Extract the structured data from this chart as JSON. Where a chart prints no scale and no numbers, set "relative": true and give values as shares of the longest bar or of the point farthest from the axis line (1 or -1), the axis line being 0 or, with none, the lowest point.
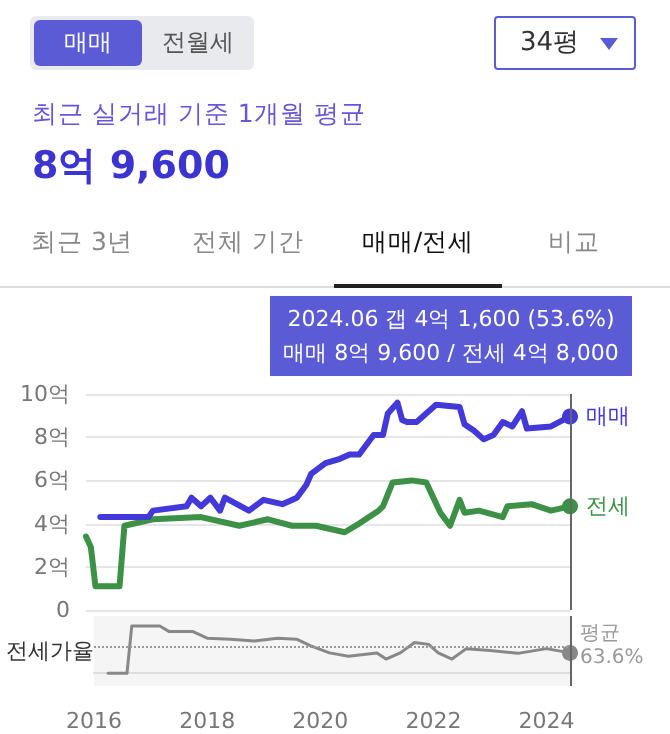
{
  "chart_data": [
    {
      "type": "line",
      "title": "8억 9,600",
      "subtitle": "최근 실거래 기준 1개월 평균",
      "annotations": [
        "매매",
        "전월세",
        "34평",
        "최근 3년",
        "전체 기간",
        "매매/전세",
        "비교",
        "2024.06  갭 4억 1,600 (53.6%)",
        "매매 8억 9,600 / 전세 4억 8,000"
      ],
      "series": [
        {
          "name": "매매",
          "color": "#4338d8",
          "x": [
            "2016-04",
            "2017-02",
            "2017-03",
            "2017-10",
            "2017-11",
            "2018-01",
            "2018-03",
            "2018-05",
            "2018-06",
            "2018-11",
            "2019-02",
            "2019-06",
            "2019-09",
            "2019-11",
            "2019-12",
            "2020-03",
            "2020-06",
            "2020-08",
            "2020-10",
            "2021-01",
            "2021-03",
            "2021-04",
            "2021-06",
            "2021-07",
            "2021-08",
            "2021-10",
            "2022-02",
            "2022-07",
            "2022-08",
            "2022-10",
            "2022-12",
            "2023-02",
            "2023-04",
            "2023-06",
            "2023-08",
            "2023-09",
            "2024-02",
            "2024-06"
          ],
          "values": [
            4.3,
            4.3,
            4.6,
            4.8,
            5.2,
            4.8,
            5.2,
            4.6,
            5.2,
            4.6,
            5.1,
            4.9,
            5.2,
            5.8,
            6.3,
            6.8,
            7.0,
            7.2,
            7.2,
            8.1,
            8.1,
            9.1,
            9.6,
            8.8,
            8.7,
            8.7,
            9.5,
            9.4,
            8.6,
            8.3,
            7.9,
            8.1,
            8.7,
            8.5,
            9.2,
            8.4,
            8.5,
            8.96
          ]
        },
        {
          "name": "전세",
          "color": "#3d9147",
          "x": [
            "2016-01",
            "2016-02",
            "2016-03",
            "2016-08",
            "2016-09",
            "2017-03",
            "2018-01",
            "2018-09",
            "2019-03",
            "2019-08",
            "2020-01",
            "2020-07",
            "2020-10",
            "2021-02",
            "2021-03",
            "2021-05",
            "2021-09",
            "2021-12",
            "2022-03",
            "2022-05",
            "2022-07",
            "2022-08",
            "2022-11",
            "2023-04",
            "2023-05",
            "2023-10",
            "2024-02",
            "2024-06"
          ],
          "values": [
            3.4,
            2.9,
            1.1,
            1.1,
            3.9,
            4.2,
            4.3,
            3.9,
            4.2,
            3.9,
            3.9,
            3.6,
            4.0,
            4.6,
            4.8,
            5.9,
            6.0,
            5.9,
            4.5,
            3.9,
            5.1,
            4.5,
            4.6,
            4.3,
            4.8,
            4.9,
            4.6,
            4.8
          ]
        }
      ],
      "xlim": [
        "2016-01",
        "2024-06"
      ],
      "ylim": [
        0,
        10
      ],
      "yticks": [
        0,
        {
          "value": 2,
          "label": "2억"
        },
        {
          "value": 4,
          "label": "4억"
        },
        {
          "value": 6,
          "label": "6억"
        },
        {
          "value": 8,
          "label": "8억"
        },
        {
          "value": 10,
          "label": "10억"
        }
      ],
      "grid": "y",
      "tick_labels": "y",
      "marker": "none",
      "ref_lines": [
        {
          "axis": "x",
          "value": "2024-06",
          "color": "#666666"
        }
      ]
    },
    {
      "type": "line",
      "ylabel": "전세가율",
      "series": [
        {
          "color": "#888888",
          "x": [
            "2016-04",
            "2016-08",
            "2016-09",
            "2017-03",
            "2017-05",
            "2017-10",
            "2018-01",
            "2018-06",
            "2018-11",
            "2019-04",
            "2019-08",
            "2019-11",
            "2020-03",
            "2020-07",
            "2021-01",
            "2021-03",
            "2021-06",
            "2021-09",
            "2021-12",
            "2022-02",
            "2022-05",
            "2022-08",
            "2023-01",
            "2023-07",
            "2024-01",
            "2024-06"
          ],
          "values": [
            0,
            0,
            1,
            1,
            0.88,
            0.88,
            0.74,
            0.72,
            0.68,
            0.74,
            0.72,
            0.58,
            0.43,
            0.36,
            0.43,
            0.3,
            0.43,
            0.65,
            0.61,
            0.43,
            0.3,
            0.52,
            0.48,
            0.42,
            0.52,
            0.43
          ]
        }
      ],
      "xlim": [
        "2016-01",
        "2024-06"
      ],
      "xticks": [
        "2016",
        "2018",
        "2020",
        "2022",
        "2024"
      ],
      "relative": true,
      "tick_labels": "x",
      "marker": "none",
      "ref_lines": [
        {
          "axis": "y",
          "value": 0.57,
          "label": "평균\n63.6%",
          "line_style": "dotted",
          "color": "#999999"
        },
        {
          "axis": "x",
          "value": "2024-06",
          "color": "#666666"
        }
      ]
    }
  ]
}
